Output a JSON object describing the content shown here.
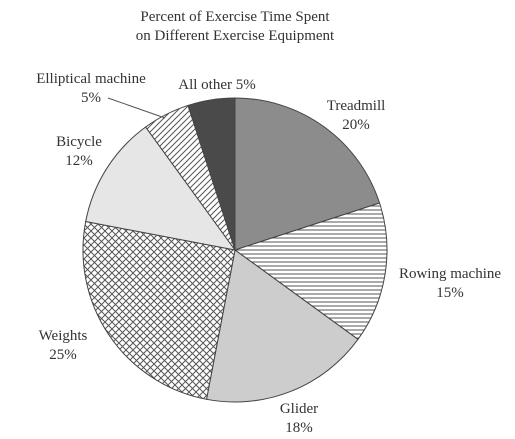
{
  "chart_data": {
    "type": "pie",
    "title_lines": [
      "Percent of Exercise Time Spent",
      "on Different Exercise Equipment"
    ],
    "slices": [
      {
        "name": "Treadmill",
        "value": 20,
        "value_label": "20%",
        "fill": "#8c8c8c",
        "pattern": "solid"
      },
      {
        "name": "Rowing machine",
        "value": 15,
        "value_label": "15%",
        "fill": "#ffffff",
        "pattern": "horizontal-lines"
      },
      {
        "name": "Glider",
        "value": 18,
        "value_label": "18%",
        "fill": "#cdcdcd",
        "pattern": "solid"
      },
      {
        "name": "Weights",
        "value": 25,
        "value_label": "25%",
        "fill": "#ffffff",
        "pattern": "crosshatch"
      },
      {
        "name": "Bicycle",
        "value": 12,
        "value_label": "12%",
        "fill": "#e6e6e6",
        "pattern": "solid"
      },
      {
        "name": "Elliptical machine",
        "value": 5,
        "value_label": "5%",
        "fill": "#ffffff",
        "pattern": "diagonal-lines"
      },
      {
        "name": "All other",
        "value": 5,
        "value_label": "5%",
        "fill": "#4a4a4a",
        "pattern": "solid"
      }
    ],
    "start_angle": "12 o'clock",
    "direction": "clockwise",
    "legend": "none"
  }
}
